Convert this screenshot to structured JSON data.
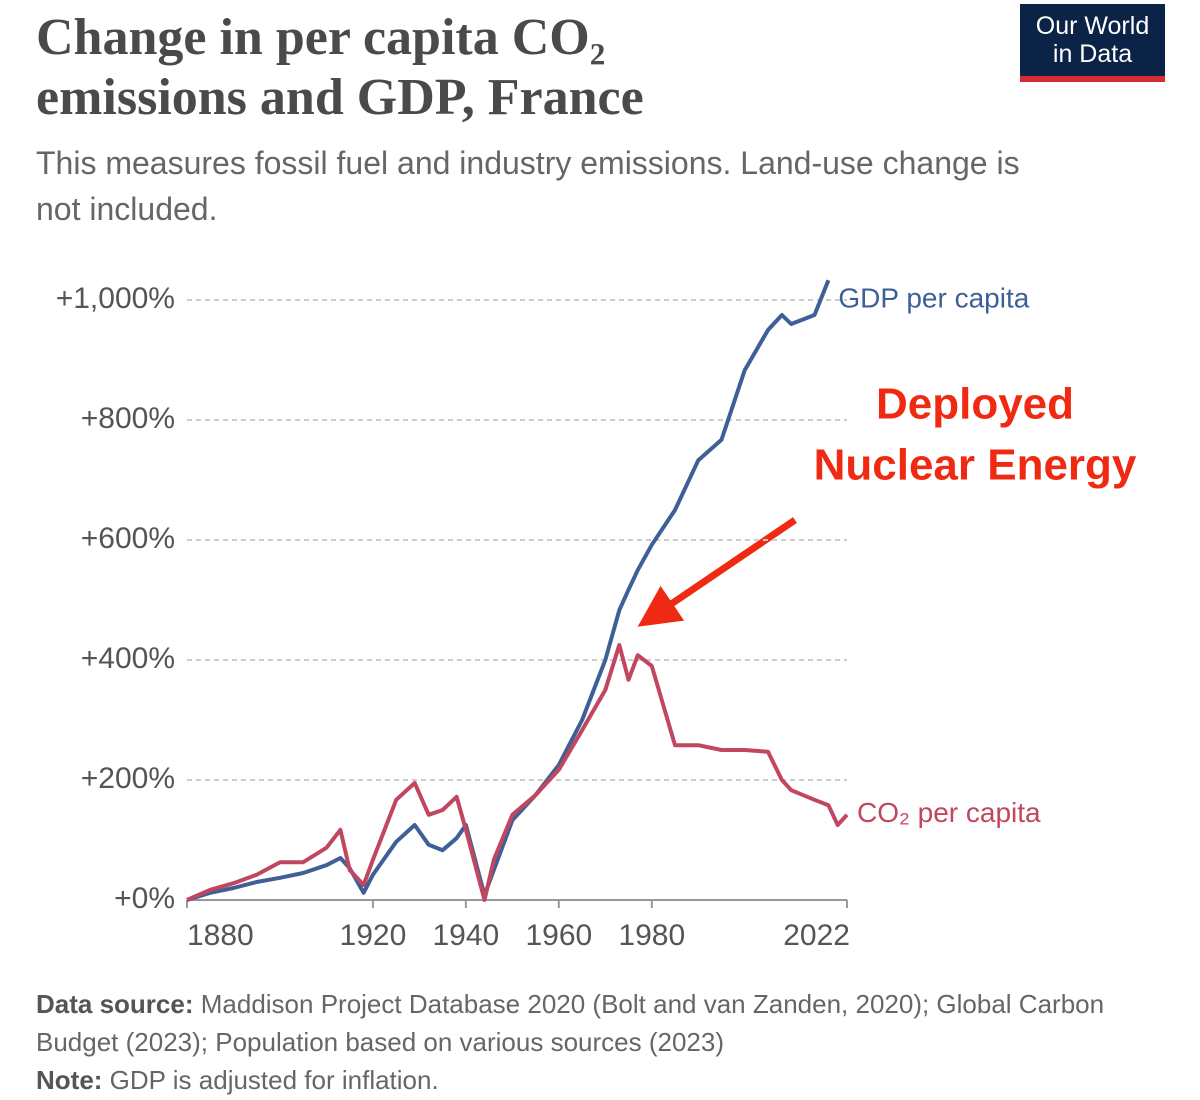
{
  "chart_data": {
    "type": "line",
    "title": "Change in per capita CO₂ emissions and GDP, France",
    "subtitle": "This measures fossil fuel and industry emissions. Land-use change is not included.",
    "logo": "Our World in Data",
    "annotation": [
      "Deployed",
      "Nuclear Energy"
    ],
    "source_label": "Data source:",
    "source": "Maddison Project Database 2020 (Bolt and van Zanden, 2020); Global Carbon Budget (2023); Population based on various sources (2023)",
    "note_label": "Note:",
    "note": "GDP is adjusted for inflation.",
    "x": [
      1880,
      1885,
      1890,
      1895,
      1900,
      1905,
      1910,
      1913,
      1915,
      1918,
      1920,
      1925,
      1929,
      1932,
      1935,
      1938,
      1940,
      1944,
      1946,
      1950,
      1955,
      1960,
      1965,
      1970,
      1973,
      1975,
      1977,
      1980,
      1985,
      1990,
      1995,
      2000,
      2005,
      2008,
      2010,
      2015,
      2018,
      2020,
      2022
    ],
    "series": [
      {
        "name": "GDP per capita",
        "color": "#3f5f97",
        "values": [
          0,
          12,
          20,
          30,
          37,
          45,
          58,
          70,
          53,
          12,
          42,
          97,
          125,
          92,
          83,
          103,
          125,
          8,
          50,
          133,
          175,
          225,
          300,
          400,
          483,
          517,
          550,
          592,
          650,
          733,
          767,
          883,
          950,
          975,
          960,
          975,
          1033,
          null,
          null
        ]
      },
      {
        "name": "CO₂ per capita",
        "color": "#c0475f",
        "values": [
          0,
          17,
          28,
          42,
          63,
          63,
          87,
          117,
          50,
          25,
          67,
          167,
          195,
          142,
          150,
          172,
          117,
          0,
          67,
          142,
          175,
          217,
          283,
          350,
          425,
          367,
          408,
          390,
          258,
          258,
          250,
          250,
          247,
          200,
          183,
          167,
          158,
          125,
          142
        ]
      }
    ],
    "xlim": [
      1880,
      2022
    ],
    "xticks": [
      1880,
      1920,
      1940,
      1960,
      1980,
      2022
    ],
    "ylim": [
      0,
      1050
    ],
    "yticks": [
      {
        "value": 0,
        "label": "+0%"
      },
      {
        "value": 200,
        "label": "+200%"
      },
      {
        "value": 400,
        "label": "+400%"
      },
      {
        "value": 600,
        "label": "+600%"
      },
      {
        "value": 800,
        "label": "+800%"
      },
      {
        "value": 1000,
        "label": "+1,000%"
      }
    ],
    "grid": true
  }
}
